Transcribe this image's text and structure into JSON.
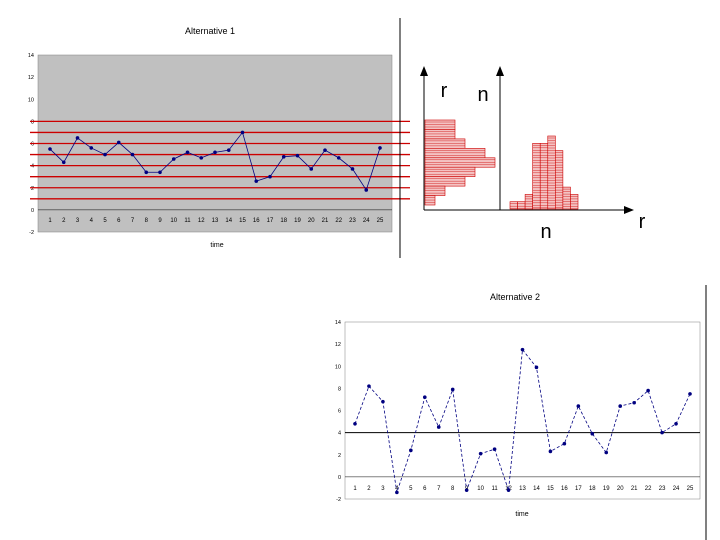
{
  "chart_data": [
    {
      "type": "line",
      "title": "Alternative 1",
      "xlabel": "time",
      "ylabel": "",
      "ylim": [
        -2,
        14
      ],
      "yticks": [
        "14",
        "12",
        "10",
        "8",
        "6",
        "4",
        "2",
        "0",
        "-2"
      ],
      "categories": [
        "1",
        "2",
        "3",
        "4",
        "5",
        "6",
        "7",
        "8",
        "9",
        "10",
        "11",
        "12",
        "13",
        "14",
        "15",
        "16",
        "17",
        "18",
        "19",
        "20",
        "21",
        "22",
        "23",
        "24",
        "25"
      ],
      "series": [
        {
          "name": "Alternative 1",
          "values": [
            5.5,
            4.3,
            6.5,
            5.6,
            5.0,
            6.1,
            5.0,
            3.4,
            3.4,
            4.6,
            5.2,
            4.7,
            5.2,
            5.4,
            7.0,
            2.6,
            3.0,
            4.8,
            4.9,
            3.7,
            5.4,
            4.7,
            3.7,
            1.8,
            5.6
          ]
        }
      ],
      "reference_levels": [
        8.0,
        7.0,
        6.0,
        5.0,
        4.0,
        3.0,
        2.0,
        1.0
      ]
    },
    {
      "type": "bar",
      "title": "",
      "xlabel": "n",
      "ylabel": "r",
      "orientation": "horizontal",
      "note": "histogram of values r along vertical axis, counts n horizontal",
      "values": [
        3,
        3,
        4,
        6,
        7,
        5,
        4,
        2,
        1
      ]
    },
    {
      "type": "bar",
      "title": "",
      "xlabel": "r",
      "ylabel": "n",
      "orientation": "vertical",
      "note": "histogram of counts n across values r",
      "values": [
        1,
        1,
        2,
        9,
        9,
        10,
        8,
        3,
        2
      ]
    },
    {
      "type": "line",
      "title": "Alternative 2",
      "xlabel": "time",
      "ylabel": "",
      "ylim": [
        -2,
        14
      ],
      "yticks": [
        "14",
        "12",
        "10",
        "8",
        "6",
        "4",
        "2",
        "0",
        "-2"
      ],
      "categories": [
        "1",
        "2",
        "3",
        "4",
        "5",
        "6",
        "7",
        "8",
        "9",
        "10",
        "11",
        "12",
        "13",
        "14",
        "15",
        "16",
        "17",
        "18",
        "19",
        "20",
        "21",
        "22",
        "23",
        "24",
        "25"
      ],
      "series": [
        {
          "name": "Alternative 2",
          "values": [
            4.8,
            8.2,
            6.8,
            -1.4,
            2.4,
            7.2,
            4.5,
            7.9,
            -1.2,
            2.1,
            2.5,
            -1.2,
            11.5,
            9.9,
            2.3,
            3.0,
            6.4,
            3.9,
            2.2,
            6.4,
            6.7,
            7.8,
            4.0,
            4.8,
            7.5
          ]
        }
      ],
      "mean_line": 4.0
    }
  ],
  "labels": {
    "r_left": "r",
    "n_left": "n",
    "n_bottom": "n",
    "r_right": "r"
  },
  "colors": {
    "plot_bg": "#c0c0c0",
    "series": "#000080",
    "reference": "#cc0000",
    "hist_fill": "#f4c2c2",
    "hist_line": "#cc0000",
    "axis": "#000000"
  }
}
